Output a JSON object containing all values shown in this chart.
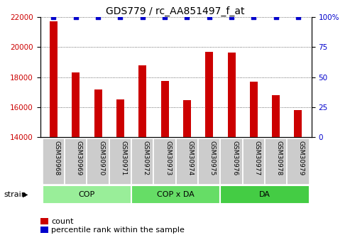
{
  "title": "GDS779 / rc_AA851497_f_at",
  "samples": [
    "GSM30968",
    "GSM30969",
    "GSM30970",
    "GSM30971",
    "GSM30972",
    "GSM30973",
    "GSM30974",
    "GSM30975",
    "GSM30976",
    "GSM30977",
    "GSM30978",
    "GSM30979"
  ],
  "counts": [
    21700,
    18300,
    17200,
    16500,
    18800,
    17750,
    16450,
    19700,
    19650,
    17700,
    16800,
    15800
  ],
  "percentiles": [
    100,
    100,
    100,
    100,
    100,
    100,
    100,
    100,
    100,
    100,
    100,
    100
  ],
  "bar_color": "#cc0000",
  "percentile_color": "#0000cc",
  "ylim_left": [
    14000,
    22000
  ],
  "ylim_right": [
    0,
    100
  ],
  "yticks_left": [
    14000,
    16000,
    18000,
    20000,
    22000
  ],
  "yticks_right": [
    0,
    25,
    50,
    75,
    100
  ],
  "groups": [
    {
      "label": "COP",
      "start": 0,
      "end": 4,
      "color": "#99ee99"
    },
    {
      "label": "COP x DA",
      "start": 4,
      "end": 8,
      "color": "#66dd66"
    },
    {
      "label": "DA",
      "start": 8,
      "end": 12,
      "color": "#44cc44"
    }
  ],
  "strain_label": "strain",
  "legend_count": "count",
  "legend_percentile": "percentile rank within the sample",
  "background_color": "#ffffff",
  "plot_bg_color": "#ffffff",
  "tick_box_color": "#cccccc",
  "grid_color": "#444444"
}
